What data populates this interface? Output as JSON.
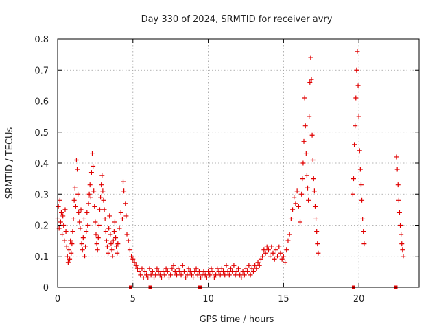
{
  "chart_data": {
    "type": "scatter",
    "title": "Day 330 of 2024, SRMTID for receiver avry",
    "xlabel": "GPS time / hours",
    "ylabel": "SRMTID / TECUs",
    "xlim": [
      0,
      24
    ],
    "ylim": [
      0,
      0.8
    ],
    "xticks": [
      0,
      5,
      10,
      15,
      20
    ],
    "xtick_labels": [
      "0",
      "5",
      "10",
      "15",
      "20"
    ],
    "yticks": [
      0,
      0.1,
      0.2,
      0.3,
      0.4,
      0.5,
      0.6,
      0.7,
      0.8
    ],
    "ytick_labels": [
      "0",
      "0.1",
      "0.2",
      "0.3",
      "0.4",
      "0.5",
      "0.6",
      "0.7",
      "0.8"
    ],
    "grid": true,
    "legend": "none",
    "marker": "+",
    "color": "#e00000",
    "series": [
      {
        "name": "SRMTID",
        "points": [
          [
            0.0,
            0.22
          ],
          [
            0.05,
            0.26
          ],
          [
            0.1,
            0.19
          ],
          [
            0.15,
            0.28
          ],
          [
            0.2,
            0.21
          ],
          [
            0.25,
            0.24
          ],
          [
            0.3,
            0.17
          ],
          [
            0.35,
            0.23
          ],
          [
            0.4,
            0.2
          ],
          [
            0.45,
            0.15
          ],
          [
            0.5,
            0.25
          ],
          [
            0.55,
            0.18
          ],
          [
            0.6,
            0.13
          ],
          [
            0.65,
            0.1
          ],
          [
            0.7,
            0.08
          ],
          [
            0.75,
            0.12
          ],
          [
            0.8,
            0.09
          ],
          [
            0.85,
            0.15
          ],
          [
            0.9,
            0.11
          ],
          [
            0.95,
            0.14
          ],
          [
            1.0,
            0.18
          ],
          [
            1.05,
            0.22
          ],
          [
            1.1,
            0.28
          ],
          [
            1.15,
            0.32
          ],
          [
            1.2,
            0.26
          ],
          [
            1.25,
            0.41
          ],
          [
            1.3,
            0.38
          ],
          [
            1.35,
            0.3
          ],
          [
            1.4,
            0.24
          ],
          [
            1.45,
            0.21
          ],
          [
            1.5,
            0.19
          ],
          [
            1.55,
            0.25
          ],
          [
            1.6,
            0.14
          ],
          [
            1.65,
            0.12
          ],
          [
            1.7,
            0.16
          ],
          [
            1.75,
            0.22
          ],
          [
            1.8,
            0.1
          ],
          [
            1.85,
            0.13
          ],
          [
            1.9,
            0.18
          ],
          [
            1.95,
            0.24
          ],
          [
            2.0,
            0.2
          ],
          [
            2.05,
            0.27
          ],
          [
            2.1,
            0.3
          ],
          [
            2.15,
            0.33
          ],
          [
            2.2,
            0.29
          ],
          [
            2.25,
            0.37
          ],
          [
            2.3,
            0.43
          ],
          [
            2.35,
            0.39
          ],
          [
            2.4,
            0.31
          ],
          [
            2.45,
            0.26
          ],
          [
            2.5,
            0.21
          ],
          [
            2.55,
            0.17
          ],
          [
            2.6,
            0.14
          ],
          [
            2.65,
            0.12
          ],
          [
            2.7,
            0.16
          ],
          [
            2.75,
            0.2
          ],
          [
            2.8,
            0.25
          ],
          [
            2.85,
            0.29
          ],
          [
            2.9,
            0.33
          ],
          [
            2.95,
            0.36
          ],
          [
            3.0,
            0.31
          ],
          [
            3.05,
            0.28
          ],
          [
            3.1,
            0.25
          ],
          [
            3.15,
            0.22
          ],
          [
            3.2,
            0.18
          ],
          [
            3.25,
            0.15
          ],
          [
            3.3,
            0.13
          ],
          [
            3.35,
            0.11
          ],
          [
            3.4,
            0.19
          ],
          [
            3.45,
            0.23
          ],
          [
            3.5,
            0.17
          ],
          [
            3.55,
            0.14
          ],
          [
            3.6,
            0.12
          ],
          [
            3.65,
            0.1
          ],
          [
            3.7,
            0.15
          ],
          [
            3.75,
            0.18
          ],
          [
            3.8,
            0.21
          ],
          [
            3.85,
            0.16
          ],
          [
            3.9,
            0.13
          ],
          [
            3.95,
            0.11
          ],
          [
            4.0,
            0.14
          ],
          [
            4.1,
            0.19
          ],
          [
            4.2,
            0.24
          ],
          [
            4.3,
            0.22
          ],
          [
            4.35,
            0.34
          ],
          [
            4.4,
            0.31
          ],
          [
            4.5,
            0.27
          ],
          [
            4.55,
            0.23
          ],
          [
            4.6,
            0.17
          ],
          [
            4.7,
            0.15
          ],
          [
            4.8,
            0.12
          ],
          [
            4.9,
            0.1
          ],
          [
            5.0,
            0.09
          ],
          [
            5.1,
            0.08
          ],
          [
            5.2,
            0.07
          ],
          [
            5.3,
            0.06
          ],
          [
            5.4,
            0.05
          ],
          [
            5.5,
            0.04
          ],
          [
            5.6,
            0.06
          ],
          [
            5.7,
            0.03
          ],
          [
            5.8,
            0.05
          ],
          [
            5.9,
            0.04
          ],
          [
            6.0,
            0.03
          ],
          [
            6.1,
            0.06
          ],
          [
            6.2,
            0.04
          ],
          [
            6.3,
            0.05
          ],
          [
            6.4,
            0.03
          ],
          [
            6.5,
            0.04
          ],
          [
            6.6,
            0.06
          ],
          [
            6.7,
            0.05
          ],
          [
            6.8,
            0.04
          ],
          [
            6.9,
            0.03
          ],
          [
            7.0,
            0.05
          ],
          [
            7.1,
            0.04
          ],
          [
            7.2,
            0.06
          ],
          [
            7.3,
            0.05
          ],
          [
            7.4,
            0.03
          ],
          [
            7.5,
            0.04
          ],
          [
            7.6,
            0.06
          ],
          [
            7.7,
            0.07
          ],
          [
            7.8,
            0.05
          ],
          [
            7.9,
            0.04
          ],
          [
            8.0,
            0.06
          ],
          [
            8.1,
            0.05
          ],
          [
            8.2,
            0.04
          ],
          [
            8.3,
            0.07
          ],
          [
            8.4,
            0.05
          ],
          [
            8.5,
            0.03
          ],
          [
            8.6,
            0.04
          ],
          [
            8.7,
            0.06
          ],
          [
            8.8,
            0.05
          ],
          [
            8.9,
            0.04
          ],
          [
            9.0,
            0.03
          ],
          [
            9.1,
            0.05
          ],
          [
            9.2,
            0.06
          ],
          [
            9.3,
            0.04
          ],
          [
            9.4,
            0.05
          ],
          [
            9.5,
            0.03
          ],
          [
            9.6,
            0.04
          ],
          [
            9.7,
            0.05
          ],
          [
            9.8,
            0.04
          ],
          [
            9.9,
            0.03
          ],
          [
            10.0,
            0.05
          ],
          [
            10.1,
            0.04
          ],
          [
            10.2,
            0.06
          ],
          [
            10.3,
            0.05
          ],
          [
            10.4,
            0.03
          ],
          [
            10.5,
            0.04
          ],
          [
            10.6,
            0.06
          ],
          [
            10.7,
            0.05
          ],
          [
            10.8,
            0.04
          ],
          [
            10.9,
            0.06
          ],
          [
            11.0,
            0.05
          ],
          [
            11.1,
            0.04
          ],
          [
            11.2,
            0.07
          ],
          [
            11.3,
            0.05
          ],
          [
            11.4,
            0.04
          ],
          [
            11.5,
            0.06
          ],
          [
            11.6,
            0.05
          ],
          [
            11.7,
            0.07
          ],
          [
            11.8,
            0.04
          ],
          [
            11.9,
            0.05
          ],
          [
            12.0,
            0.06
          ],
          [
            12.1,
            0.04
          ],
          [
            12.2,
            0.03
          ],
          [
            12.3,
            0.05
          ],
          [
            12.4,
            0.04
          ],
          [
            12.5,
            0.06
          ],
          [
            12.6,
            0.05
          ],
          [
            12.7,
            0.07
          ],
          [
            12.8,
            0.04
          ],
          [
            12.9,
            0.06
          ],
          [
            13.0,
            0.05
          ],
          [
            13.1,
            0.07
          ],
          [
            13.2,
            0.06
          ],
          [
            13.3,
            0.08
          ],
          [
            13.4,
            0.07
          ],
          [
            13.5,
            0.09
          ],
          [
            13.6,
            0.1
          ],
          [
            13.7,
            0.12
          ],
          [
            13.8,
            0.11
          ],
          [
            13.9,
            0.13
          ],
          [
            14.0,
            0.12
          ],
          [
            14.1,
            0.1
          ],
          [
            14.2,
            0.13
          ],
          [
            14.3,
            0.11
          ],
          [
            14.4,
            0.09
          ],
          [
            14.5,
            0.12
          ],
          [
            14.6,
            0.1
          ],
          [
            14.7,
            0.13
          ],
          [
            14.8,
            0.11
          ],
          [
            14.9,
            0.09
          ],
          [
            15.0,
            0.1
          ],
          [
            15.1,
            0.08
          ],
          [
            15.2,
            0.12
          ],
          [
            15.3,
            0.15
          ],
          [
            15.4,
            0.17
          ],
          [
            15.5,
            0.22
          ],
          [
            15.6,
            0.25
          ],
          [
            15.7,
            0.29
          ],
          [
            15.8,
            0.27
          ],
          [
            15.9,
            0.31
          ],
          [
            16.0,
            0.26
          ],
          [
            16.1,
            0.21
          ],
          [
            16.2,
            0.3
          ],
          [
            16.25,
            0.35
          ],
          [
            16.3,
            0.4
          ],
          [
            16.35,
            0.47
          ],
          [
            16.4,
            0.61
          ],
          [
            16.45,
            0.52
          ],
          [
            16.5,
            0.43
          ],
          [
            16.55,
            0.36
          ],
          [
            16.6,
            0.32
          ],
          [
            16.65,
            0.28
          ],
          [
            16.7,
            0.55
          ],
          [
            16.75,
            0.66
          ],
          [
            16.8,
            0.74
          ],
          [
            16.85,
            0.67
          ],
          [
            16.9,
            0.49
          ],
          [
            16.95,
            0.41
          ],
          [
            17.0,
            0.35
          ],
          [
            17.05,
            0.31
          ],
          [
            17.1,
            0.26
          ],
          [
            17.15,
            0.22
          ],
          [
            17.2,
            0.18
          ],
          [
            17.25,
            0.14
          ],
          [
            17.3,
            0.11
          ],
          [
            19.6,
            0.3
          ],
          [
            19.65,
            0.35
          ],
          [
            19.7,
            0.46
          ],
          [
            19.75,
            0.52
          ],
          [
            19.8,
            0.61
          ],
          [
            19.85,
            0.7
          ],
          [
            19.9,
            0.76
          ],
          [
            19.95,
            0.65
          ],
          [
            20.0,
            0.55
          ],
          [
            20.05,
            0.44
          ],
          [
            20.1,
            0.38
          ],
          [
            20.15,
            0.33
          ],
          [
            20.2,
            0.28
          ],
          [
            20.25,
            0.22
          ],
          [
            20.3,
            0.18
          ],
          [
            20.35,
            0.14
          ],
          [
            22.5,
            0.42
          ],
          [
            22.55,
            0.38
          ],
          [
            22.6,
            0.33
          ],
          [
            22.65,
            0.28
          ],
          [
            22.7,
            0.24
          ],
          [
            22.75,
            0.2
          ],
          [
            22.8,
            0.17
          ],
          [
            22.85,
            0.14
          ],
          [
            22.9,
            0.12
          ],
          [
            22.95,
            0.1
          ]
        ]
      },
      {
        "name": "zero markers",
        "marker": "square",
        "points": [
          [
            4.85,
            0
          ],
          [
            6.15,
            0
          ],
          [
            9.45,
            0
          ],
          [
            19.65,
            0
          ],
          [
            22.45,
            0
          ]
        ]
      }
    ]
  }
}
